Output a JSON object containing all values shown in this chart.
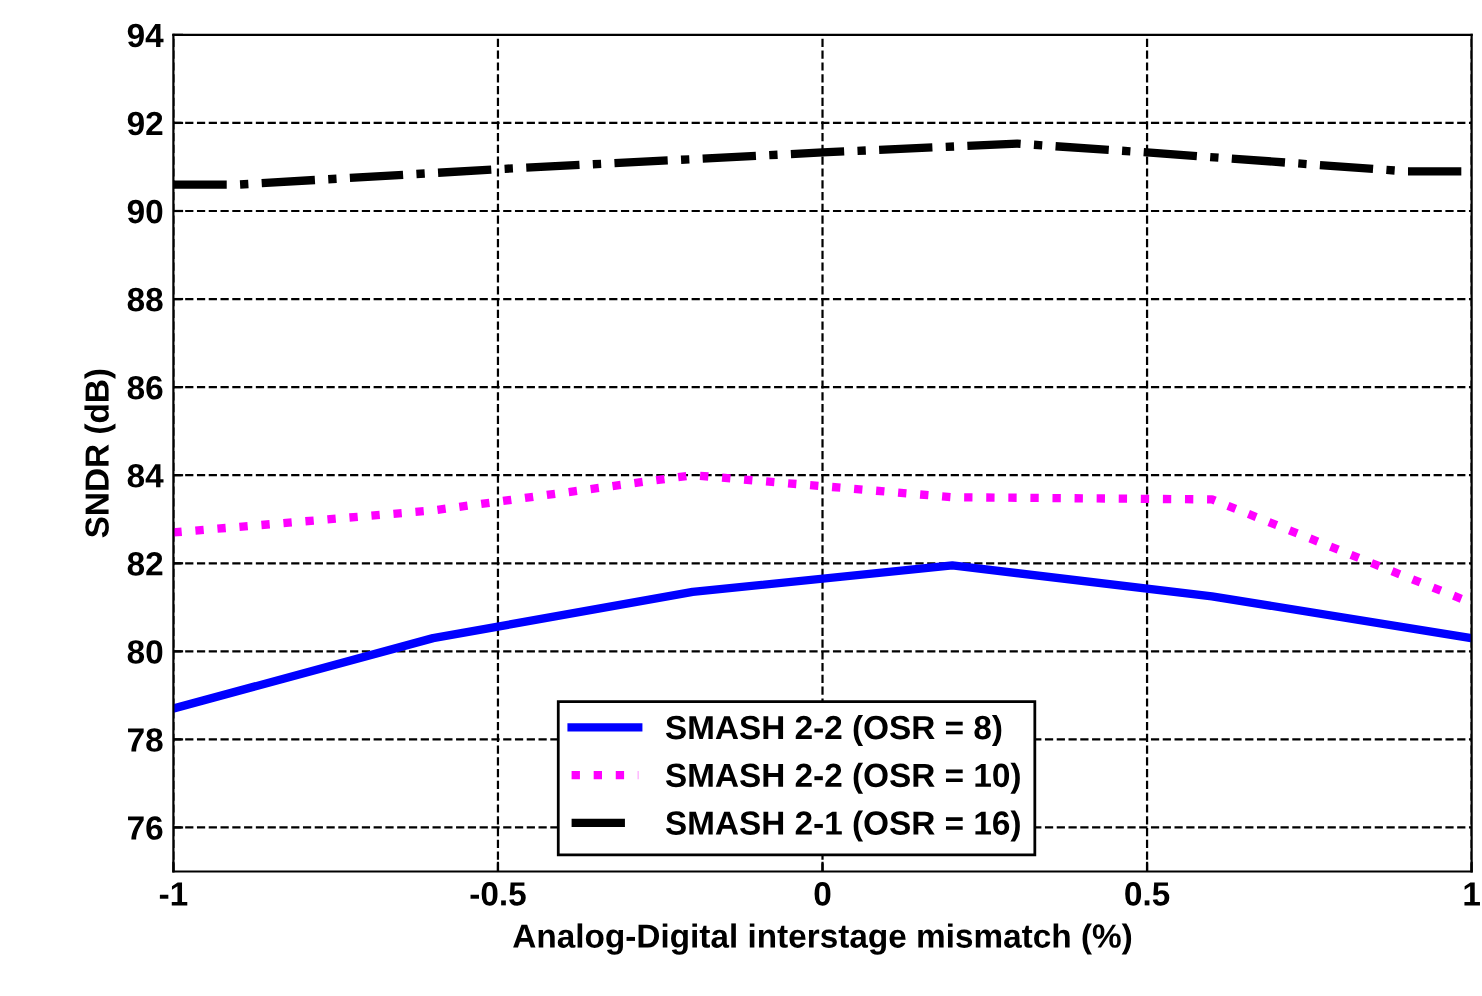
{
  "chart_data": {
    "type": "line",
    "xlabel": "Analog-Digital interstage mismatch (%)",
    "ylabel": "SNDR (dB)",
    "xlim": [
      -1,
      1
    ],
    "xticks": [
      -1,
      -0.5,
      0,
      0.5,
      1
    ],
    "ylim": [
      75,
      94
    ],
    "yticks": [
      76,
      78,
      80,
      82,
      84,
      86,
      88,
      90,
      92,
      94
    ],
    "grid": true,
    "legend": "bottom",
    "series": [
      {
        "name": "SMASH 2-2 (OSR = 8)",
        "color": "#0000ff",
        "line_style": "solid",
        "x": [
          -1,
          -0.6,
          -0.2,
          0.2,
          0.6,
          1
        ],
        "values": [
          78.7,
          80.3,
          81.35,
          81.95,
          81.25,
          80.3
        ]
      },
      {
        "name": "SMASH 2-2 (OSR = 10)",
        "color": "#ff00ff",
        "line_style": "dotted",
        "x": [
          -1,
          -0.6,
          -0.2,
          0.2,
          0.6,
          1
        ],
        "values": [
          82.7,
          83.2,
          84.0,
          83.5,
          83.45,
          81.1
        ]
      },
      {
        "name": "SMASH 2-1 (OSR = 16)",
        "color": "#000000",
        "line_style": "dashdot",
        "x": [
          -1,
          -0.9,
          -0.5,
          0,
          0.3,
          0.5,
          0.9,
          1
        ],
        "values": [
          90.6,
          90.6,
          90.95,
          91.33,
          91.53,
          91.33,
          90.9,
          90.9
        ]
      }
    ]
  }
}
